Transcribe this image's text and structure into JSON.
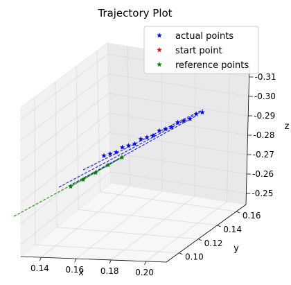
{
  "chart_data": {
    "type": "scatter",
    "projection": "3d",
    "title": "Trajectory Plot",
    "xlabel": "x",
    "ylabel": "y",
    "zlabel": "z",
    "x_ticks": [
      "0.14",
      "0.16",
      "0.18",
      "0.20"
    ],
    "y_ticks": [
      "0.10",
      "0.12",
      "0.14",
      "0.16"
    ],
    "z_ticks": [
      "-0.25",
      "-0.26",
      "-0.27",
      "-0.28",
      "-0.29",
      "-0.30",
      "-0.31"
    ],
    "grid": true,
    "legend_position": "top-right",
    "legend": [
      {
        "label": "actual points",
        "color": "#0000ff",
        "marker": "star"
      },
      {
        "label": "start point",
        "color": "#ff0000",
        "marker": "star"
      },
      {
        "label": "reference points",
        "color": "#008000",
        "marker": "star"
      }
    ],
    "series": [
      {
        "name": "actual points",
        "color": "#0000ff",
        "marker": "star",
        "line_style": "dashed"
      },
      {
        "name": "start point",
        "color": "#ff0000",
        "marker": "star"
      },
      {
        "name": "reference points",
        "color": "#008000",
        "marker": "star",
        "line_style": "dashed"
      }
    ]
  }
}
